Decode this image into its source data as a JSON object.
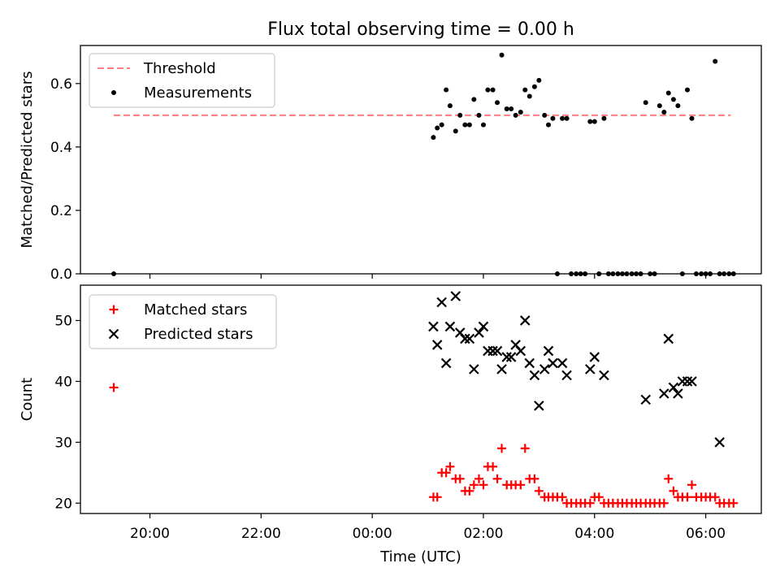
{
  "title": "Flux total observing time = 0.00 h",
  "chart_data": [
    {
      "type": "scatter",
      "ylabel": "Matched/Predicted stars",
      "xlim": [
        18.75,
        31.0
      ],
      "ylim": [
        0.0,
        0.72
      ],
      "yticks": [
        0.0,
        0.2,
        0.4,
        0.6
      ],
      "ytick_labels": [
        "0.0",
        "0.2",
        "0.4",
        "0.6"
      ],
      "legend_position": "top-left",
      "threshold": {
        "name": "Threshold",
        "y": 0.5,
        "x_range": [
          19.35,
          30.45
        ],
        "color": "#ff7f7f",
        "style": "dashed"
      },
      "series": [
        {
          "name": "Measurements",
          "marker": "dot",
          "color": "#000000",
          "x": [
            19.35,
            25.1,
            25.17,
            25.25,
            25.33,
            25.4,
            25.5,
            25.58,
            25.67,
            25.75,
            25.83,
            25.92,
            26.0,
            26.08,
            26.17,
            26.25,
            26.33,
            26.42,
            26.5,
            26.58,
            26.67,
            26.75,
            26.83,
            26.92,
            27.0,
            27.1,
            27.17,
            27.25,
            27.33,
            27.42,
            27.5,
            27.58,
            27.67,
            27.75,
            27.83,
            27.92,
            28.0,
            28.08,
            28.17,
            28.25,
            28.33,
            28.42,
            28.5,
            28.58,
            28.67,
            28.75,
            28.83,
            28.92,
            29.0,
            29.08,
            29.17,
            29.25,
            29.33,
            29.42,
            29.5,
            29.58,
            29.67,
            29.75,
            29.83,
            29.92,
            30.0,
            30.08,
            30.17,
            30.25,
            30.33,
            30.42,
            30.5
          ],
          "y": [
            0.0,
            0.43,
            0.46,
            0.47,
            0.58,
            0.53,
            0.45,
            0.5,
            0.47,
            0.47,
            0.55,
            0.5,
            0.47,
            0.58,
            0.58,
            0.54,
            0.69,
            0.52,
            0.52,
            0.5,
            0.51,
            0.58,
            0.56,
            0.59,
            0.61,
            0.5,
            0.47,
            0.49,
            0.0,
            0.49,
            0.49,
            0.0,
            0.0,
            0.0,
            0.0,
            0.48,
            0.48,
            0.0,
            0.49,
            0.0,
            0.0,
            0.0,
            0.0,
            0.0,
            0.0,
            0.0,
            0.0,
            0.54,
            0.0,
            0.0,
            0.53,
            0.51,
            0.57,
            0.55,
            0.53,
            0.0,
            0.58,
            0.49,
            0.0,
            0.0,
            0.0,
            0.0,
            0.67,
            0.0,
            0.0,
            0.0,
            0.0
          ]
        }
      ]
    },
    {
      "type": "scatter",
      "ylabel": "Count",
      "xlabel": "Time (UTC)",
      "xlim": [
        18.75,
        31.0
      ],
      "ylim": [
        18.3,
        55.8
      ],
      "yticks": [
        20,
        30,
        40,
        50
      ],
      "ytick_labels": [
        "20",
        "30",
        "40",
        "50"
      ],
      "xticks": [
        20,
        22,
        24,
        26,
        28,
        30
      ],
      "xtick_labels": [
        "20:00",
        "22:00",
        "00:00",
        "02:00",
        "04:00",
        "06:00"
      ],
      "legend_position": "top-left",
      "series": [
        {
          "name": "Matched stars",
          "marker": "plus",
          "color": "#ff0000",
          "x": [
            19.35,
            25.1,
            25.17,
            25.25,
            25.33,
            25.4,
            25.5,
            25.58,
            25.67,
            25.75,
            25.83,
            25.92,
            26.0,
            26.08,
            26.17,
            26.25,
            26.33,
            26.42,
            26.5,
            26.58,
            26.67,
            26.75,
            26.83,
            26.92,
            27.0,
            27.1,
            27.17,
            27.25,
            27.33,
            27.42,
            27.5,
            27.58,
            27.67,
            27.75,
            27.83,
            27.92,
            28.0,
            28.08,
            28.17,
            28.25,
            28.33,
            28.42,
            28.5,
            28.58,
            28.67,
            28.75,
            28.83,
            28.92,
            29.0,
            29.08,
            29.17,
            29.25,
            29.33,
            29.42,
            29.5,
            29.58,
            29.67,
            29.75,
            29.83,
            29.92,
            30.0,
            30.08,
            30.17,
            30.25,
            30.33,
            30.42,
            30.5
          ],
          "y": [
            39,
            21,
            21,
            25,
            25,
            26,
            24,
            24,
            22,
            22,
            23,
            24,
            23,
            26,
            26,
            24,
            29,
            23,
            23,
            23,
            23,
            29,
            24,
            24,
            22,
            21,
            21,
            21,
            21,
            21,
            20,
            20,
            20,
            20,
            20,
            20,
            21,
            21,
            20,
            20,
            20,
            20,
            20,
            20,
            20,
            20,
            20,
            20,
            20,
            20,
            20,
            20,
            24,
            22,
            21,
            21,
            21,
            23,
            21,
            21,
            21,
            21,
            21,
            20,
            20,
            20,
            20
          ]
        },
        {
          "name": "Predicted stars",
          "marker": "x",
          "color": "#000000",
          "x": [
            25.1,
            25.17,
            25.25,
            25.33,
            25.4,
            25.5,
            25.58,
            25.67,
            25.75,
            25.83,
            25.92,
            26.0,
            26.08,
            26.17,
            26.25,
            26.33,
            26.42,
            26.5,
            26.58,
            26.67,
            26.75,
            26.83,
            26.92,
            27.0,
            27.1,
            27.17,
            27.25,
            27.42,
            27.5,
            27.92,
            28.0,
            28.17,
            28.92,
            29.25,
            29.33,
            29.42,
            29.5,
            29.58,
            29.67,
            29.75,
            30.25
          ],
          "y": [
            49,
            46,
            53,
            43,
            49,
            54,
            48,
            47,
            47,
            42,
            48,
            49,
            45,
            45,
            45,
            42,
            44,
            44,
            46,
            45,
            50,
            43,
            41,
            36,
            42,
            45,
            43,
            43,
            41,
            42,
            44,
            41,
            37,
            38,
            47,
            39,
            38,
            40,
            40,
            40,
            30
          ]
        }
      ]
    }
  ]
}
